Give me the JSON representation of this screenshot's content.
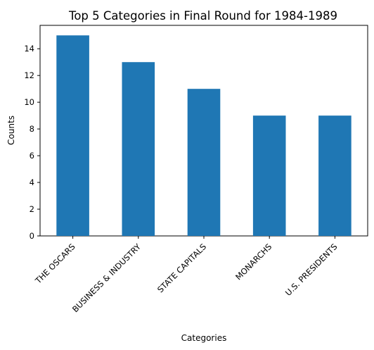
{
  "chart_data": {
    "type": "bar",
    "title": "Top 5 Categories in Final Round for 1984-1989",
    "xlabel": "Categories",
    "ylabel": "Counts",
    "categories": [
      "THE OSCARS",
      "BUSINESS & INDUSTRY",
      "STATE CAPITALS",
      "MONARCHS",
      "U.S. PRESIDENTS"
    ],
    "values": [
      15,
      13,
      11,
      9,
      9
    ],
    "yticks": [
      "0",
      "2",
      "4",
      "6",
      "8",
      "10",
      "12",
      "14"
    ],
    "ylim": [
      0,
      15.75
    ],
    "grid": false,
    "legend": "none",
    "bar_color": "#1f77b4"
  }
}
